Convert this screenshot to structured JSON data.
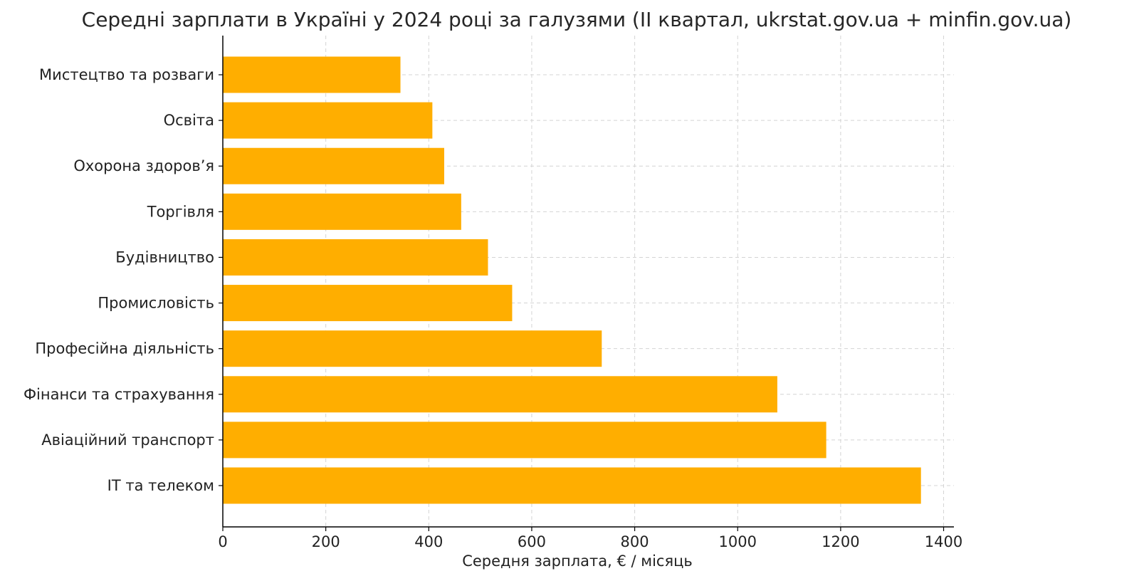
{
  "chart_data": {
    "type": "bar",
    "orientation": "horizontal",
    "title": "Середні зарплати в Україні у 2024 році за галузями (II квартал, ukrstat.gov.ua + minfin.gov.ua)",
    "xlabel": "Середня зарплата, € / місяць",
    "ylabel": "",
    "xlim": [
      0,
      1420
    ],
    "xticks": [
      0,
      200,
      400,
      600,
      800,
      1000,
      1200,
      1400
    ],
    "grid": true,
    "categories": [
      "Мистецтво та розваги",
      "Освіта",
      "Охорона здоров’я",
      "Торгівля",
      "Будівництво",
      "Промисловість",
      "Професійна діяльність",
      "Фінанси та страхування",
      "Авіаційний транспорт",
      "IT та телеком"
    ],
    "values": [
      345,
      407,
      430,
      463,
      515,
      562,
      736,
      1077,
      1172,
      1356
    ],
    "bar_color": "#ffae00"
  }
}
